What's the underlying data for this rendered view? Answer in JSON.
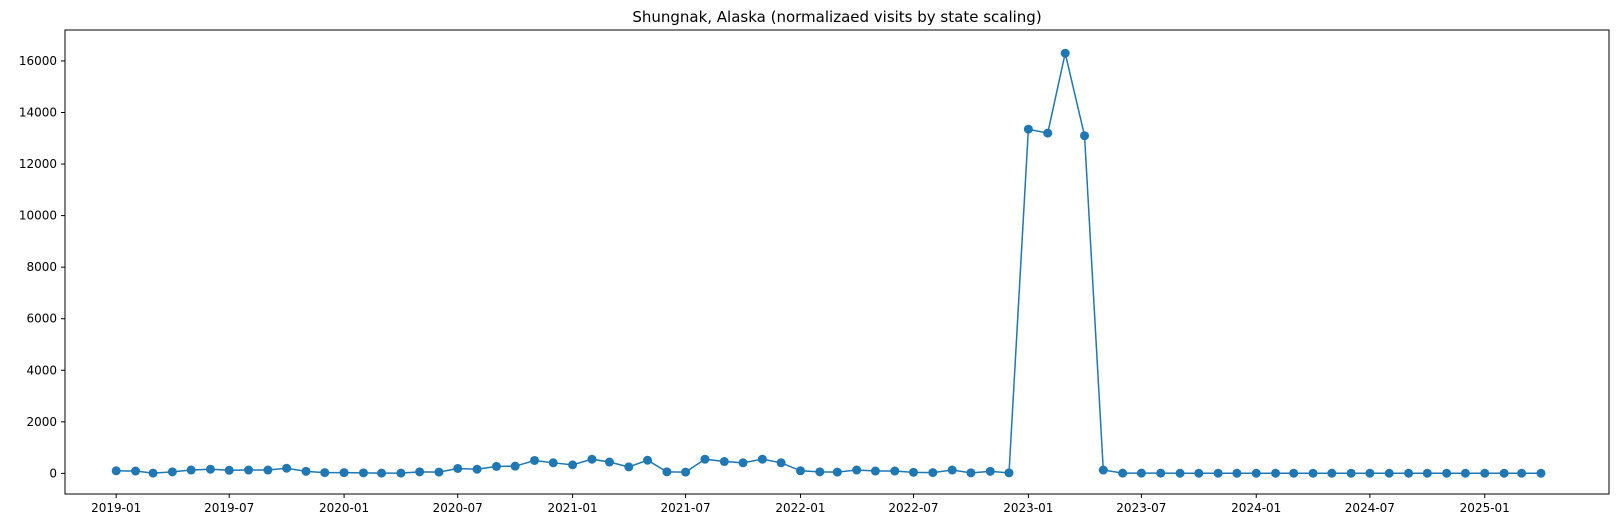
{
  "chart_data": {
    "type": "line",
    "title": "Shungnak, Alaska (normalizaed visits by state scaling)",
    "xlabel": "",
    "ylabel": "",
    "ylim": [
      -800,
      17200
    ],
    "xlim": [
      "2018-10-11",
      "2025-07-19"
    ],
    "yticks": [
      0,
      2000,
      4000,
      6000,
      8000,
      10000,
      12000,
      14000,
      16000
    ],
    "xticks": [
      "2019-01",
      "2019-07",
      "2020-01",
      "2020-07",
      "2021-01",
      "2021-07",
      "2022-01",
      "2022-07",
      "2023-01",
      "2023-07",
      "2024-01",
      "2024-07",
      "2025-01"
    ],
    "grid": false,
    "color": "#1f77b4",
    "series": [
      {
        "x": [
          "2019-01",
          "2019-02",
          "2019-03",
          "2019-04",
          "2019-05",
          "2019-06",
          "2019-07",
          "2019-08",
          "2019-09",
          "2019-10",
          "2019-11",
          "2019-12",
          "2020-01",
          "2020-02",
          "2020-03",
          "2020-04",
          "2020-05",
          "2020-06",
          "2020-07",
          "2020-08",
          "2020-09",
          "2020-10",
          "2020-11",
          "2020-12",
          "2021-01",
          "2021-02",
          "2021-03",
          "2021-04",
          "2021-05",
          "2021-06",
          "2021-07",
          "2021-08",
          "2021-09",
          "2021-10",
          "2021-11",
          "2021-12",
          "2022-01",
          "2022-02",
          "2022-03",
          "2022-04",
          "2022-05",
          "2022-06",
          "2022-07",
          "2022-08",
          "2022-09",
          "2022-10",
          "2022-11",
          "2022-12",
          "2023-01",
          "2023-02",
          "2023-03",
          "2023-04",
          "2023-05",
          "2023-06",
          "2023-07",
          "2023-08",
          "2023-09",
          "2023-10",
          "2023-11",
          "2023-12",
          "2024-01",
          "2024-02",
          "2024-03",
          "2024-04",
          "2024-05",
          "2024-06",
          "2024-07",
          "2024-08",
          "2024-09",
          "2024-10",
          "2024-11",
          "2024-12",
          "2025-01",
          "2025-02",
          "2025-03",
          "2025-04"
        ],
        "y": [
          100,
          90,
          10,
          60,
          130,
          160,
          120,
          130,
          130,
          200,
          80,
          30,
          30,
          20,
          10,
          10,
          60,
          50,
          190,
          160,
          270,
          280,
          500,
          410,
          330,
          550,
          440,
          250,
          510,
          60,
          50,
          550,
          460,
          410,
          550,
          410,
          100,
          60,
          50,
          130,
          90,
          90,
          40,
          30,
          130,
          20,
          80,
          20,
          13350,
          13200,
          16300,
          13100,
          130,
          10,
          10,
          10,
          5,
          5,
          5,
          5,
          5,
          5,
          5,
          5,
          5,
          5,
          5,
          5,
          5,
          5,
          5,
          5,
          5,
          5,
          5,
          5
        ]
      }
    ]
  }
}
